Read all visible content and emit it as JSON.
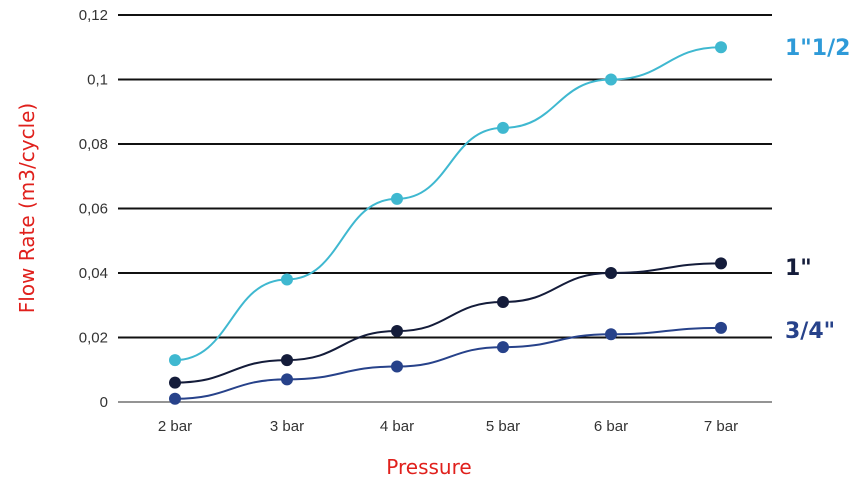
{
  "chart_data": {
    "type": "line",
    "categories": [
      "2 bar",
      "3 bar",
      "4 bar",
      "5 bar",
      "6 bar",
      "7 bar"
    ],
    "series": [
      {
        "name": "1\"1/2",
        "values": [
          0.013,
          0.038,
          0.063,
          0.085,
          0.1,
          0.11
        ],
        "color": "#3fb8d0",
        "label_color": "#2e9ad8"
      },
      {
        "name": "1\"",
        "values": [
          0.006,
          0.013,
          0.022,
          0.031,
          0.04,
          0.043
        ],
        "color": "#141c3a",
        "label_color": "#141c3a"
      },
      {
        "name": "3/4\"",
        "values": [
          0.001,
          0.007,
          0.011,
          0.017,
          0.021,
          0.023
        ],
        "color": "#27428a",
        "label_color": "#27428a"
      }
    ],
    "y_ticks": [
      "0,12",
      "0,1",
      "0,08",
      "0,06",
      "0,04",
      "0,02",
      "0"
    ],
    "ylim": [
      0,
      0.12
    ],
    "xlabel": "Pressure",
    "ylabel": "Flow Rate (m3/cycle)",
    "grid": "horizontal",
    "title": ""
  }
}
